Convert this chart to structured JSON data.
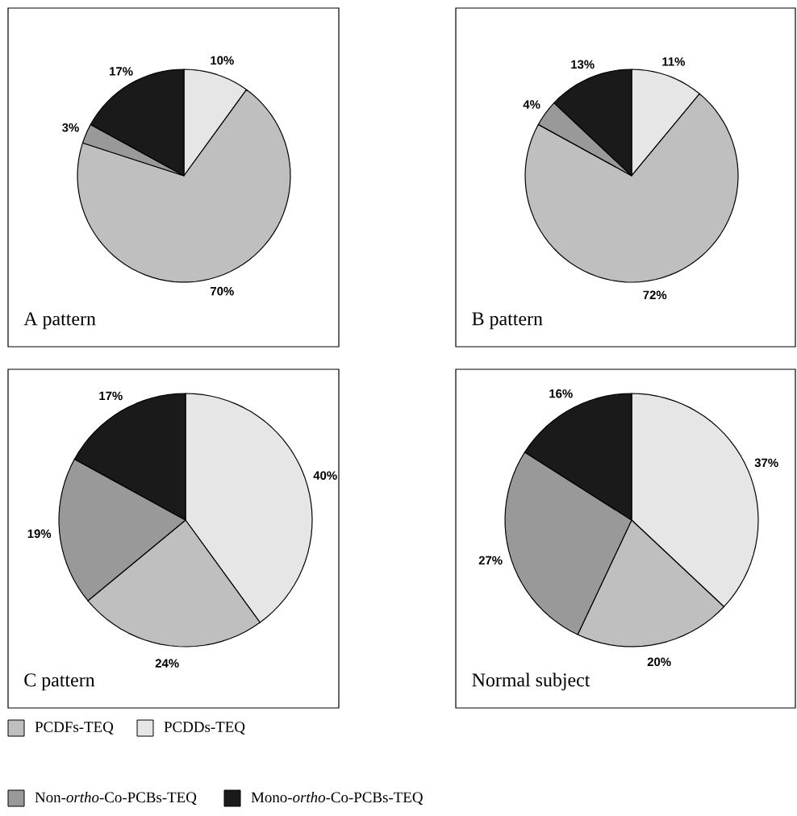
{
  "chart_data": [
    {
      "type": "pie",
      "title": "A pattern",
      "categories": [
        "PCDDs-TEQ",
        "PCDFs-TEQ",
        "Non-*ortho*-Co-PCBs-TEQ",
        "Mono-*ortho*-Co-PCBs-TEQ"
      ],
      "values": [
        10,
        70,
        3,
        17
      ],
      "value_labels": [
        "10%",
        "70%",
        "3%",
        "17%"
      ],
      "colors": [
        "#e6e6e6",
        "#bfbfbf",
        "#999999",
        "#1a1a1a"
      ],
      "legend": "bottom"
    },
    {
      "type": "pie",
      "title": "B pattern",
      "categories": [
        null,
        null,
        null,
        null
      ],
      "values": [
        11,
        72,
        4,
        13
      ],
      "value_labels": [
        "11%",
        "72%",
        "4%",
        "13%"
      ],
      "colors": [
        "#e6e6e6",
        "#bfbfbf",
        "#999999",
        "#1a1a1a"
      ]
    },
    {
      "type": "pie",
      "title": "C pattern",
      "categories": [
        null,
        null,
        null,
        null
      ],
      "values": [
        40,
        24,
        19,
        17
      ],
      "value_labels": [
        "40%",
        "24%",
        "19%",
        "17%"
      ],
      "colors": [
        "#e6e6e6",
        "#bfbfbf",
        "#999999",
        "#1a1a1a"
      ]
    },
    {
      "type": "pie",
      "title": "Normal subject",
      "categories": [
        null,
        null,
        null,
        null
      ],
      "values": [
        37,
        20,
        27,
        16
      ],
      "value_labels": [
        "37%",
        "20%",
        "27%",
        "16%"
      ],
      "colors": [
        "#e6e6e6",
        "#bfbfbf",
        "#999999",
        "#1a1a1a"
      ]
    }
  ]
}
